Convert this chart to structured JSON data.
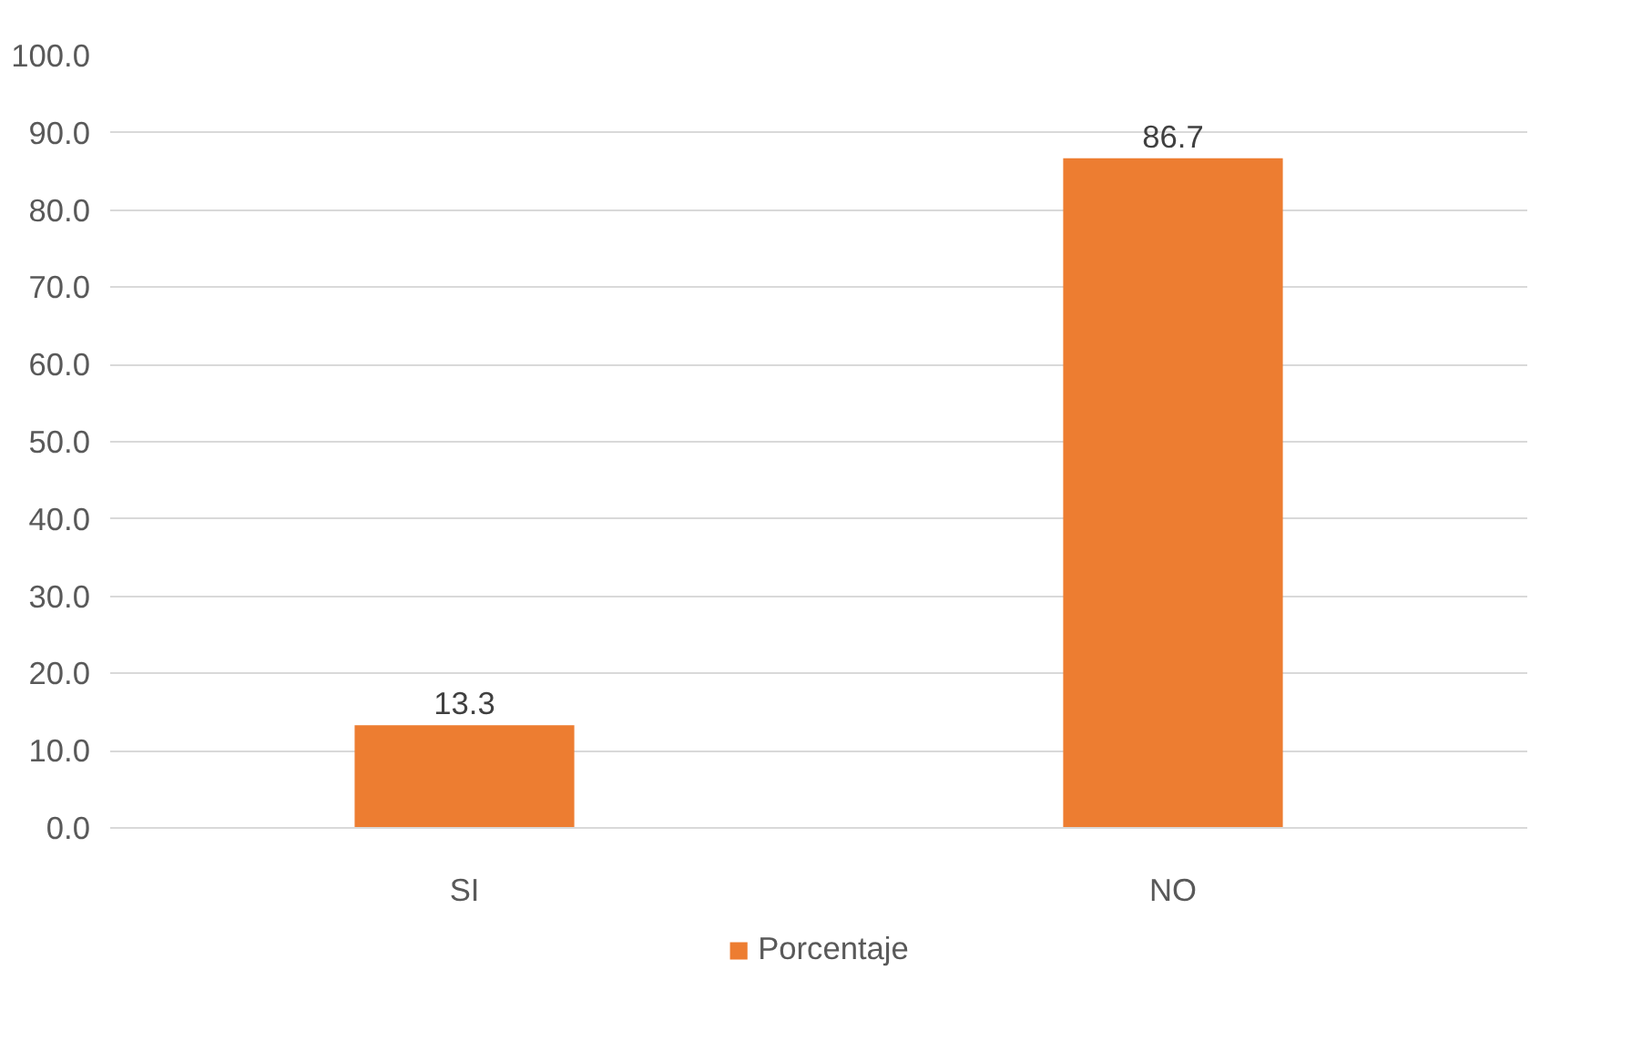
{
  "chart_data": {
    "type": "bar",
    "categories": [
      "SI",
      "NO"
    ],
    "series": [
      {
        "name": "Porcentaje",
        "color": "#ed7d31",
        "values": [
          13.3,
          86.7
        ]
      }
    ],
    "ylim": [
      0,
      100
    ],
    "yticks": [
      {
        "value": 0,
        "label": "0.0"
      },
      {
        "value": 10,
        "label": "10.0"
      },
      {
        "value": 20,
        "label": "20.0"
      },
      {
        "value": 30,
        "label": "30.0"
      },
      {
        "value": 40,
        "label": "40.0"
      },
      {
        "value": 50,
        "label": "50.0"
      },
      {
        "value": 60,
        "label": "60.0"
      },
      {
        "value": 70,
        "label": "70.0"
      },
      {
        "value": 80,
        "label": "80.0"
      },
      {
        "value": 90,
        "label": "90.0"
      },
      {
        "value": 100,
        "label": "100.0"
      }
    ],
    "grid": "y",
    "legend": "bottom",
    "data_labels": true
  }
}
